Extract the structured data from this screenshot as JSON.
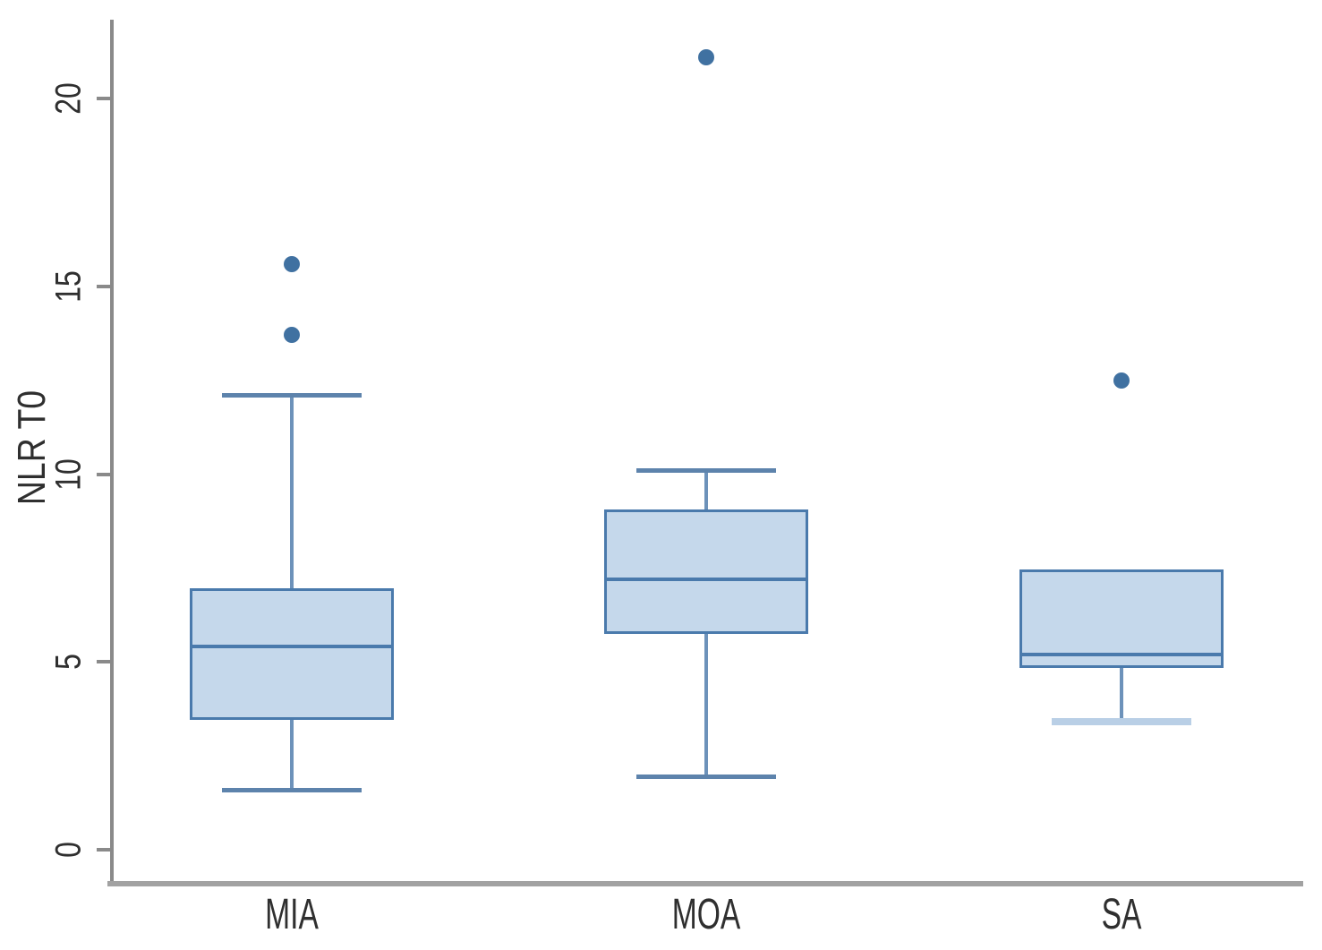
{
  "chart_data": {
    "type": "boxplot",
    "title": "",
    "ylabel": "NLR T0",
    "xlabel": "",
    "categories": [
      "MIA",
      "MOA",
      "SA"
    ],
    "yticks": [
      0,
      5,
      10,
      15,
      20
    ],
    "ylim": [
      0,
      22.1
    ],
    "grid": false,
    "legend": "none",
    "groups": [
      {
        "label": "MIA",
        "whisker_low": 1.6,
        "q1": 3.45,
        "median": 5.4,
        "q3": 6.95,
        "whisker_high": 12.1,
        "outliers": [
          13.7,
          15.6
        ],
        "low_cap_style": "normal"
      },
      {
        "label": "MOA",
        "whisker_low": 1.95,
        "q1": 5.75,
        "median": 7.2,
        "q3": 9.05,
        "whisker_high": 10.1,
        "outliers": [
          21.1
        ],
        "low_cap_style": "normal"
      },
      {
        "label": "SA",
        "whisker_low": 3.4,
        "q1": 4.85,
        "median": 5.2,
        "q3": 7.45,
        "whisker_high": null,
        "outliers": [
          12.5
        ],
        "low_cap_style": "light"
      }
    ],
    "colors": {
      "box_fill": "#c5d8eb",
      "box_border": "#4a7aac",
      "median": "#4a7aac",
      "whisker": "#6d92ba",
      "cap": "#5d83ac",
      "light_cap": "#b9cfe6",
      "outlier": "#4071a1",
      "y_axis": "#8a8a8a",
      "x_axis": "#a2a2a2",
      "tick": "#8a8a8a",
      "text": "#2f2f2f"
    }
  }
}
